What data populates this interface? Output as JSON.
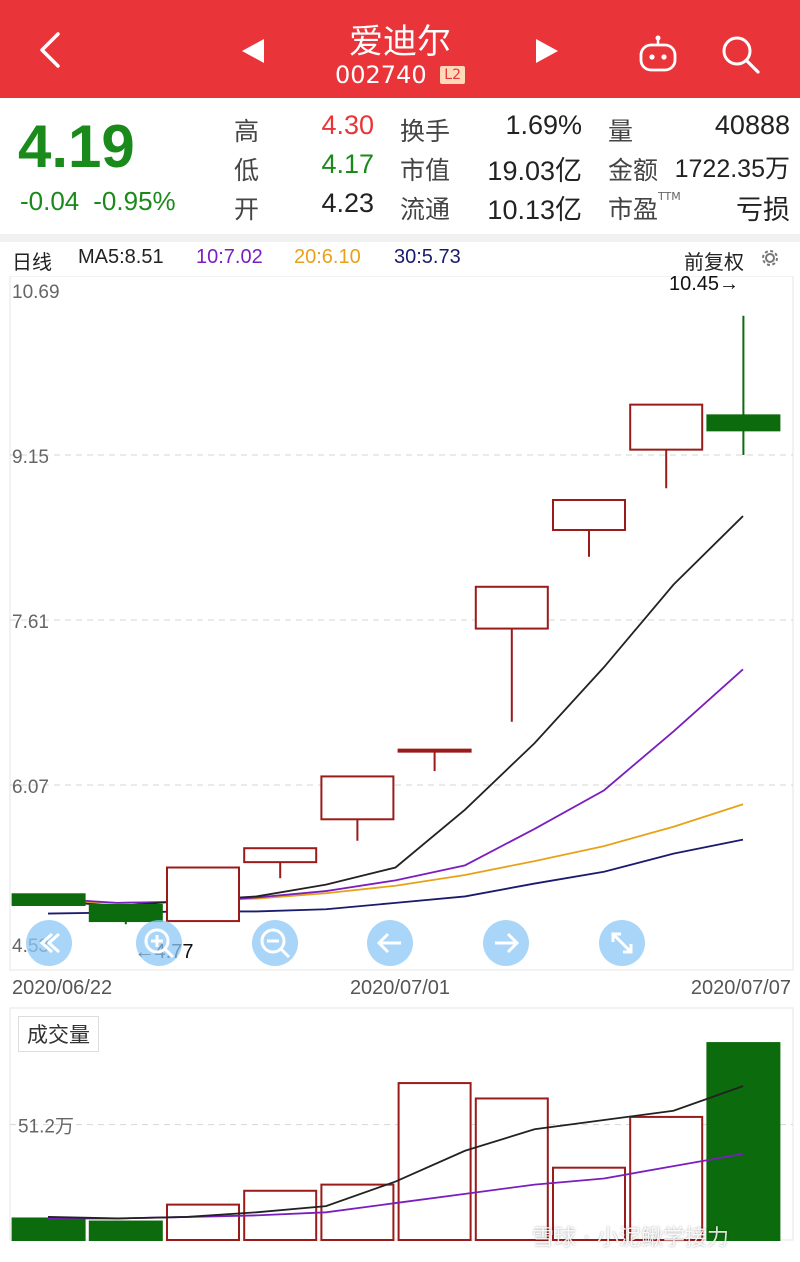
{
  "header": {
    "title": "爱迪尔",
    "code": "002740",
    "badge": "L2"
  },
  "quote": {
    "price": "4.19",
    "change": "-0.04",
    "change_pct": "-0.95%",
    "rows": [
      {
        "l1": "高",
        "v1": "4.30",
        "l2": "换手",
        "v2": "1.69%",
        "l3": "量",
        "v3": "40888"
      },
      {
        "l1": "低",
        "v1": "4.17",
        "l2": "市值",
        "v2": "19.03亿",
        "l3": "金额",
        "v3": "1722.35万"
      },
      {
        "l1": "开",
        "v1": "4.23",
        "l2": "流通",
        "v2": "10.13亿",
        "l3": "市盈",
        "v3": "亏损"
      }
    ],
    "ttm": "TTM"
  },
  "ma_bar": {
    "period": "日线",
    "ma5": "MA5:8.51",
    "ma10": "10:7.02",
    "ma20": "20:6.10",
    "ma30": "30:5.73",
    "adjust": "前复权"
  },
  "colors": {
    "up": "#9b1b1b",
    "down": "#0c6b0c",
    "ma5": "#222222",
    "ma10": "#7a1fbf",
    "ma20": "#e8a21a",
    "ma30": "#1a1a6e"
  },
  "chart_data": {
    "type": "candlestick",
    "y_ticks": [
      "10.69",
      "9.15",
      "7.61",
      "6.07",
      "4.53"
    ],
    "ylim": [
      4.53,
      10.69
    ],
    "x_labels": [
      "2020/06/22",
      "2020/07/01",
      "2020/07/07"
    ],
    "max_label": "10.45→",
    "min_label": "←4.77",
    "candles": [
      {
        "open": 5.05,
        "close": 4.95,
        "high": 5.05,
        "low": 4.95
      },
      {
        "open": 4.95,
        "close": 4.8,
        "high": 4.95,
        "low": 4.77
      },
      {
        "open": 4.8,
        "close": 5.3,
        "high": 5.3,
        "low": 4.8
      },
      {
        "open": 5.35,
        "close": 5.48,
        "high": 5.48,
        "low": 5.2
      },
      {
        "open": 5.75,
        "close": 6.15,
        "high": 6.15,
        "low": 5.55
      },
      {
        "open": 6.4,
        "close": 6.4,
        "high": 6.4,
        "low": 6.2
      },
      {
        "open": 7.53,
        "close": 7.92,
        "high": 7.92,
        "low": 6.66
      },
      {
        "open": 8.45,
        "close": 8.73,
        "high": 8.73,
        "low": 8.2
      },
      {
        "open": 9.2,
        "close": 9.62,
        "high": 9.62,
        "low": 8.84
      },
      {
        "open": 9.52,
        "close": 9.38,
        "high": 10.45,
        "low": 9.15
      }
    ],
    "ma5": [
      4.99,
      4.94,
      4.99,
      5.03,
      5.14,
      5.3,
      5.84,
      6.46,
      7.17,
      7.94,
      8.58
    ],
    "ma10": [
      5.01,
      4.97,
      4.98,
      5.02,
      5.08,
      5.18,
      5.32,
      5.66,
      6.02,
      6.57,
      7.15
    ],
    "ma20": [
      4.97,
      4.97,
      4.98,
      5.01,
      5.06,
      5.13,
      5.23,
      5.36,
      5.5,
      5.68,
      5.89
    ],
    "ma30": [
      4.87,
      4.88,
      4.89,
      4.89,
      4.91,
      4.97,
      5.03,
      5.15,
      5.26,
      5.43,
      5.56
    ],
    "volume_label": "成交量",
    "volume_tick": "51.2万",
    "volumes": [
      14,
      12,
      23,
      32,
      36,
      102,
      92,
      47,
      80,
      128
    ],
    "vol_ma5": [
      15,
      14,
      15,
      18,
      22,
      38,
      58,
      72,
      78,
      84,
      100
    ],
    "vol_ma10": [
      14,
      14,
      15,
      16,
      18,
      24,
      30,
      36,
      40,
      48,
      56
    ],
    "vol_max": 130
  },
  "watermark": "雪球 · 小泥鳅学接力"
}
